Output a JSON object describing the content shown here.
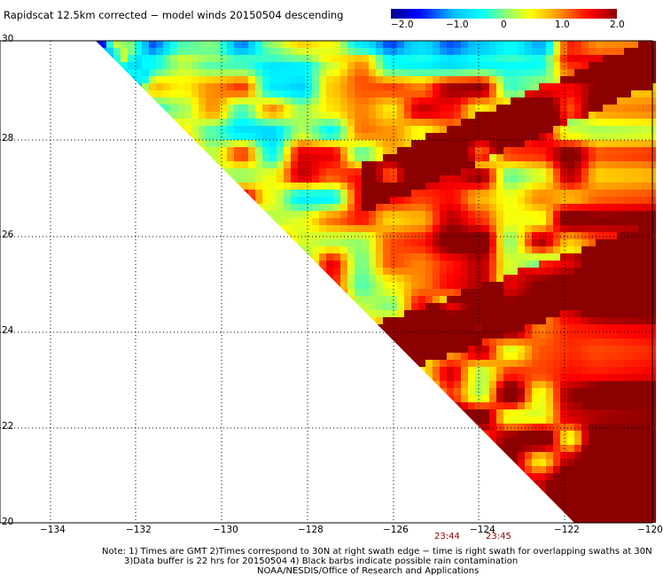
{
  "title": "Rapidscat 12.5km corrected − model winds 20150504 descending",
  "colorbar": {
    "labels": [
      "−2.0",
      "−1.0",
      "0",
      "1.0",
      "2.0"
    ],
    "min": -2.0,
    "max": 2.0,
    "colors": [
      "#00008b",
      "#0000ff",
      "#00bfff",
      "#00ffff",
      "#7fff7f",
      "#ffff00",
      "#ff8c00",
      "#ff0000",
      "#8b0000"
    ]
  },
  "map": {
    "lon_range": [
      -135,
      -120
    ],
    "lat_range": [
      20,
      30
    ],
    "lon_ticks": [
      "−134",
      "−132",
      "−130",
      "−128",
      "−126",
      "−124",
      "−122",
      "−120"
    ],
    "lat_ticks": [
      "30",
      "28",
      "26",
      "24",
      "22",
      "20"
    ],
    "grid": "dotted",
    "swath_times": [
      "23:44",
      "23:45"
    ]
  },
  "notes": [
    "Note: 1) Times are GMT 2)Times correspond to 30N at right swath edge − time is right swath for overlapping swaths at 30N",
    "3)Data buffer is 22 hrs for 20150504 4) Black barbs indicate possible rain contamination",
    "NOAA/NESDIS/Office of Research and Applications"
  ]
}
